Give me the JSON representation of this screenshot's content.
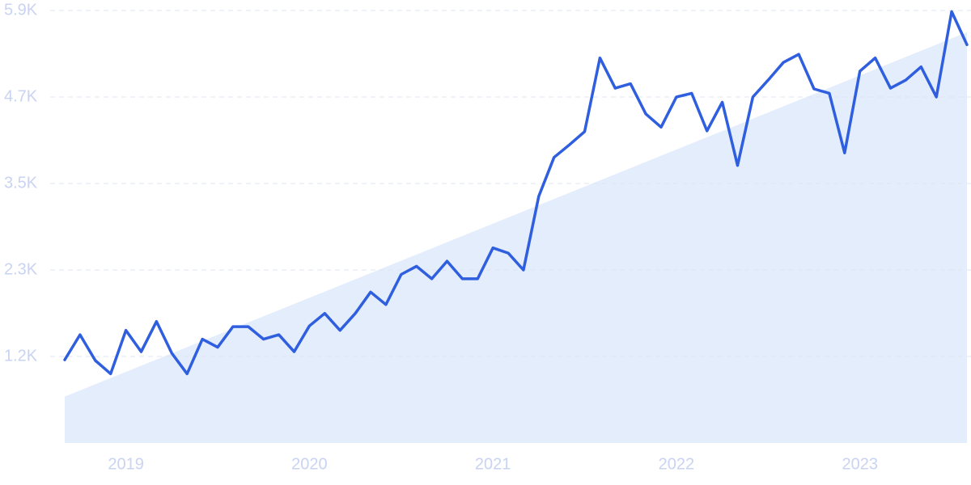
{
  "chart_data": {
    "type": "line",
    "categories": [
      null,
      null,
      null,
      null,
      "2019",
      null,
      null,
      null,
      null,
      null,
      null,
      null,
      null,
      null,
      null,
      null,
      "2020",
      null,
      null,
      null,
      null,
      null,
      null,
      null,
      null,
      null,
      null,
      null,
      "2021",
      null,
      null,
      null,
      null,
      null,
      null,
      null,
      null,
      null,
      null,
      null,
      "2022",
      null,
      null,
      null,
      null,
      null,
      null,
      null,
      null,
      null,
      null,
      null,
      "2023",
      null,
      null,
      null,
      null,
      null,
      null,
      null
    ],
    "values": [
      1130,
      1470,
      1120,
      940,
      1530,
      1240,
      1650,
      1220,
      940,
      1410,
      1300,
      1580,
      1580,
      1410,
      1470,
      1240,
      1590,
      1760,
      1530,
      1760,
      2050,
      1880,
      2290,
      2400,
      2230,
      2470,
      2230,
      2230,
      2650,
      2580,
      2350,
      3350,
      3880,
      4050,
      4230,
      5230,
      4820,
      4880,
      4470,
      4290,
      4700,
      4750,
      4240,
      4630,
      3770,
      4700,
      4930,
      5170,
      5280,
      4810,
      4750,
      3940,
      5050,
      5230,
      4820,
      4930,
      5110,
      4700,
      5860,
      5410
    ],
    "color": "#2f5fdf",
    "trend_values": [
      630,
      5580
    ],
    "trend_color": "#e3edfc",
    "ylim": [
      0,
      5875
    ],
    "yticks": [
      {
        "value": 1175,
        "label": "1.2K"
      },
      {
        "value": 2350,
        "label": "2.3K"
      },
      {
        "value": 3525,
        "label": "3.5K"
      },
      {
        "value": 4700,
        "label": "4.7K"
      },
      {
        "value": 5875,
        "label": "5.9K"
      }
    ],
    "grid": true
  }
}
